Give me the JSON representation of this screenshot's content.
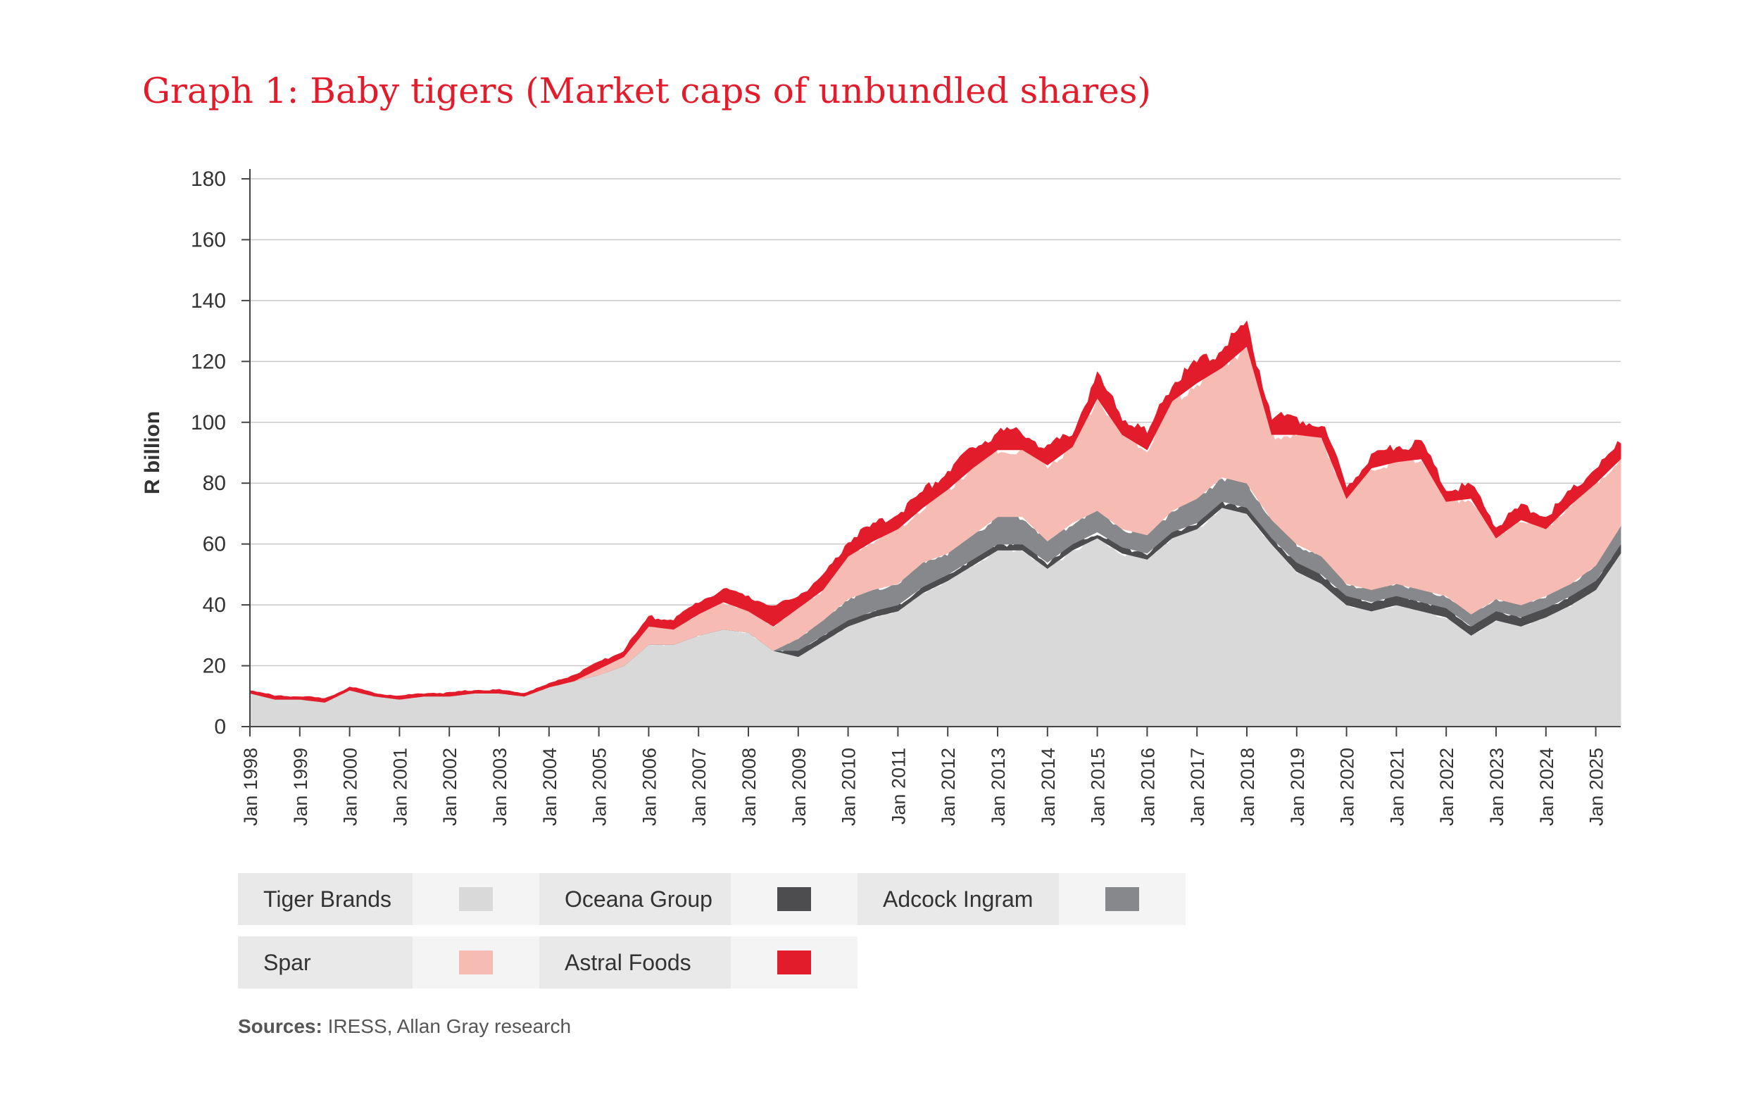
{
  "title": "Graph 1: Baby tigers (Market caps of unbundled shares)",
  "sources": {
    "label": "Sources:",
    "text": " IRESS, Allan Gray research"
  },
  "chart_data": {
    "type": "area",
    "stacked": true,
    "ylabel": "R billion",
    "ylim": [
      0,
      180
    ],
    "yticks": [
      "0",
      "20",
      "40",
      "60",
      "80",
      "100",
      "120",
      "140",
      "160",
      "180"
    ],
    "xlim": [
      "1998-01",
      "2025-07"
    ],
    "xticks": [
      "Jan 1998",
      "Jan 1999",
      "Jan 2000",
      "Jan 2001",
      "Jan 2002",
      "Jan 2003",
      "Jan 2004",
      "Jan 2005",
      "Jan 2006",
      "Jan 2007",
      "Jan 2008",
      "Jan 2009",
      "Jan 2010",
      "Jan 2011",
      "Jan 2012",
      "Jan 2013",
      "Jan 2014",
      "Jan 2015",
      "Jan 2016",
      "Jan 2017",
      "Jan 2018",
      "Jan 2019",
      "Jan 2020",
      "Jan 2021",
      "Jan 2022",
      "Jan 2023",
      "Jan 2024",
      "Jan 2025"
    ],
    "grid": true,
    "legend_position": "bottom",
    "x": [
      "1998-01",
      "1998-07",
      "1999-01",
      "1999-07",
      "2000-01",
      "2000-07",
      "2001-01",
      "2001-07",
      "2002-01",
      "2002-07",
      "2003-01",
      "2003-07",
      "2004-01",
      "2004-07",
      "2005-01",
      "2005-07",
      "2006-01",
      "2006-07",
      "2007-01",
      "2007-07",
      "2008-01",
      "2008-07",
      "2009-01",
      "2009-07",
      "2010-01",
      "2010-07",
      "2011-01",
      "2011-07",
      "2012-01",
      "2012-07",
      "2013-01",
      "2013-07",
      "2014-01",
      "2014-07",
      "2015-01",
      "2015-07",
      "2016-01",
      "2016-07",
      "2017-01",
      "2017-07",
      "2018-01",
      "2018-07",
      "2019-01",
      "2019-07",
      "2020-01",
      "2020-07",
      "2021-01",
      "2021-07",
      "2022-01",
      "2022-07",
      "2023-01",
      "2023-07",
      "2024-01",
      "2024-07",
      "2025-01",
      "2025-07"
    ],
    "series": [
      {
        "name": "Tiger Brands",
        "color": "#d9d9d9",
        "values": [
          11,
          9,
          9,
          8,
          12,
          10,
          9,
          10,
          10,
          11,
          11,
          10,
          13,
          15,
          17,
          20,
          27,
          27,
          30,
          32,
          31,
          25,
          23,
          28,
          33,
          36,
          38,
          44,
          48,
          53,
          58,
          58,
          52,
          58,
          62,
          57,
          55,
          62,
          65,
          72,
          70,
          60,
          51,
          47,
          40,
          38,
          40,
          38,
          36,
          30,
          35,
          33,
          36,
          40,
          45,
          57
        ]
      },
      {
        "name": "Oceana Group",
        "color": "#4d4d50",
        "values": [
          0,
          0,
          0,
          0,
          0,
          0,
          0,
          0,
          0,
          0,
          0,
          0,
          0,
          0,
          0,
          0,
          0,
          0,
          0,
          0,
          0,
          0,
          2,
          2,
          2,
          2,
          2,
          2,
          2,
          2,
          2,
          2,
          2,
          2,
          2,
          2,
          2,
          2,
          2,
          2,
          2,
          2,
          3,
          3,
          3,
          3,
          3,
          3,
          3,
          3,
          3,
          3,
          3,
          3,
          3,
          3
        ]
      },
      {
        "name": "Adcock Ingram",
        "color": "#87888b",
        "values": [
          0,
          0,
          0,
          0,
          0,
          0,
          0,
          0,
          0,
          0,
          0,
          0,
          0,
          0,
          0,
          0,
          0,
          0,
          0,
          0,
          0,
          0,
          4,
          5,
          7,
          7,
          7,
          8,
          7,
          8,
          9,
          9,
          7,
          7,
          7,
          6,
          6,
          7,
          8,
          8,
          8,
          6,
          6,
          6,
          4,
          4,
          4,
          4,
          4,
          4,
          4,
          4,
          4,
          4,
          5,
          6
        ]
      },
      {
        "name": "Spar",
        "color": "#f6bcb3",
        "values": [
          0,
          0,
          0,
          0,
          0,
          0,
          0,
          0,
          0,
          0,
          0,
          0,
          0,
          0,
          2,
          3,
          6,
          5,
          7,
          9,
          7,
          8,
          10,
          10,
          14,
          16,
          18,
          18,
          21,
          22,
          22,
          22,
          25,
          25,
          37,
          31,
          28,
          36,
          38,
          36,
          45,
          28,
          36,
          39,
          28,
          40,
          40,
          43,
          31,
          38,
          20,
          28,
          22,
          26,
          27,
          22
        ]
      },
      {
        "name": "Astral Foods",
        "color": "#e31c2c",
        "values": [
          1,
          1,
          1,
          1,
          1,
          1,
          1,
          1,
          1,
          1,
          1,
          1,
          1,
          2,
          2,
          2,
          3,
          3,
          4,
          4,
          5,
          6,
          4,
          4,
          5,
          5,
          5,
          5,
          6,
          6,
          6,
          6,
          5,
          5,
          7,
          6,
          5,
          6,
          6,
          6,
          7,
          6,
          5,
          5,
          4,
          4,
          5,
          5,
          4,
          4,
          4,
          4,
          4,
          4,
          5,
          5
        ]
      }
    ]
  }
}
